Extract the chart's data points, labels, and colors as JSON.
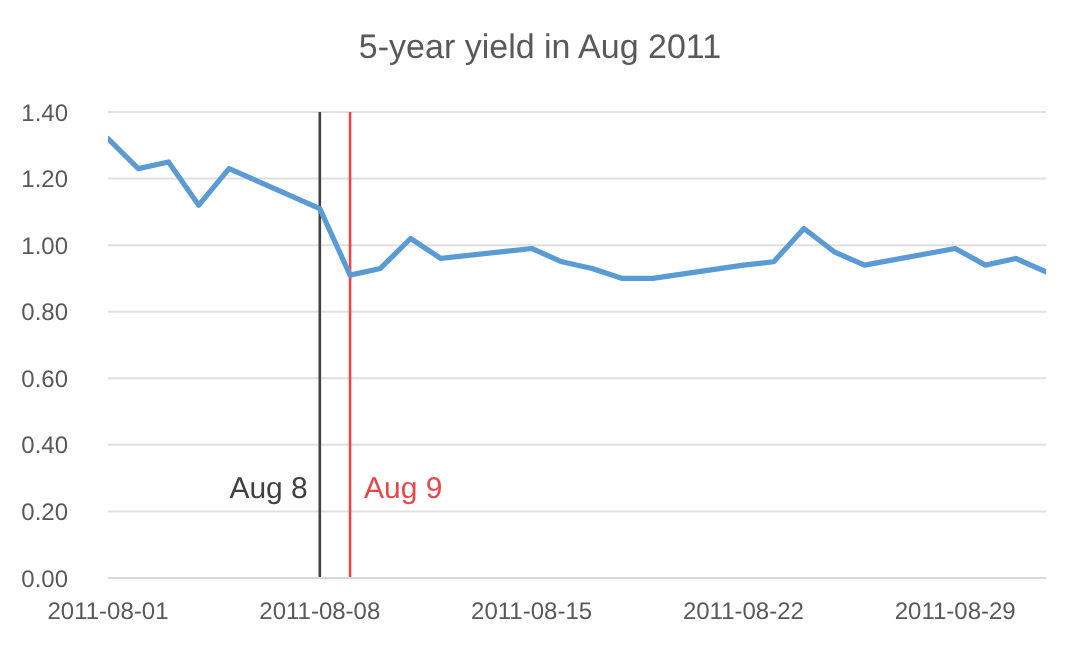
{
  "chart_data": {
    "type": "line",
    "title": "5-year yield in Aug 2011",
    "x": [
      "2011-08-01",
      "2011-08-02",
      "2011-08-03",
      "2011-08-04",
      "2011-08-05",
      "2011-08-08",
      "2011-08-09",
      "2011-08-10",
      "2011-08-11",
      "2011-08-12",
      "2011-08-15",
      "2011-08-16",
      "2011-08-17",
      "2011-08-18",
      "2011-08-19",
      "2011-08-22",
      "2011-08-23",
      "2011-08-24",
      "2011-08-25",
      "2011-08-26",
      "2011-08-29",
      "2011-08-30",
      "2011-08-31",
      "2011-09-01"
    ],
    "series": [
      {
        "color": "#5b9bd5",
        "values": [
          1.32,
          1.23,
          1.25,
          1.12,
          1.23,
          1.11,
          0.91,
          0.93,
          1.02,
          0.96,
          0.99,
          0.95,
          0.93,
          0.9,
          0.9,
          0.94,
          0.95,
          1.05,
          0.98,
          0.94,
          0.99,
          0.94,
          0.96,
          0.92
        ]
      }
    ],
    "xlim": [
      "2011-08-01",
      "2011-09-01"
    ],
    "xticks": [
      "2011-08-01",
      "2011-08-08",
      "2011-08-15",
      "2011-08-22",
      "2011-08-29"
    ],
    "ylim": [
      0,
      1.4
    ],
    "yticks": [
      {
        "value": 0,
        "label": "0.00"
      },
      {
        "value": 0.2,
        "label": "0.20"
      },
      {
        "value": 0.4,
        "label": "0.40"
      },
      {
        "value": 0.6,
        "label": "0.60"
      },
      {
        "value": 0.8,
        "label": "0.80"
      },
      {
        "value": 1.0,
        "label": "1.00"
      },
      {
        "value": 1.2,
        "label": "1.20"
      },
      {
        "value": 1.4,
        "label": "1.40"
      }
    ],
    "ref_lines": [
      {
        "axis": "x",
        "value": "2011-08-08",
        "label": "Aug 8",
        "color": "#404040"
      },
      {
        "axis": "x",
        "value": "2011-08-09",
        "label": "Aug 9",
        "color": "#e8474a"
      }
    ],
    "grid": "y",
    "legend": false,
    "marker": "none",
    "line_style": "solid"
  }
}
